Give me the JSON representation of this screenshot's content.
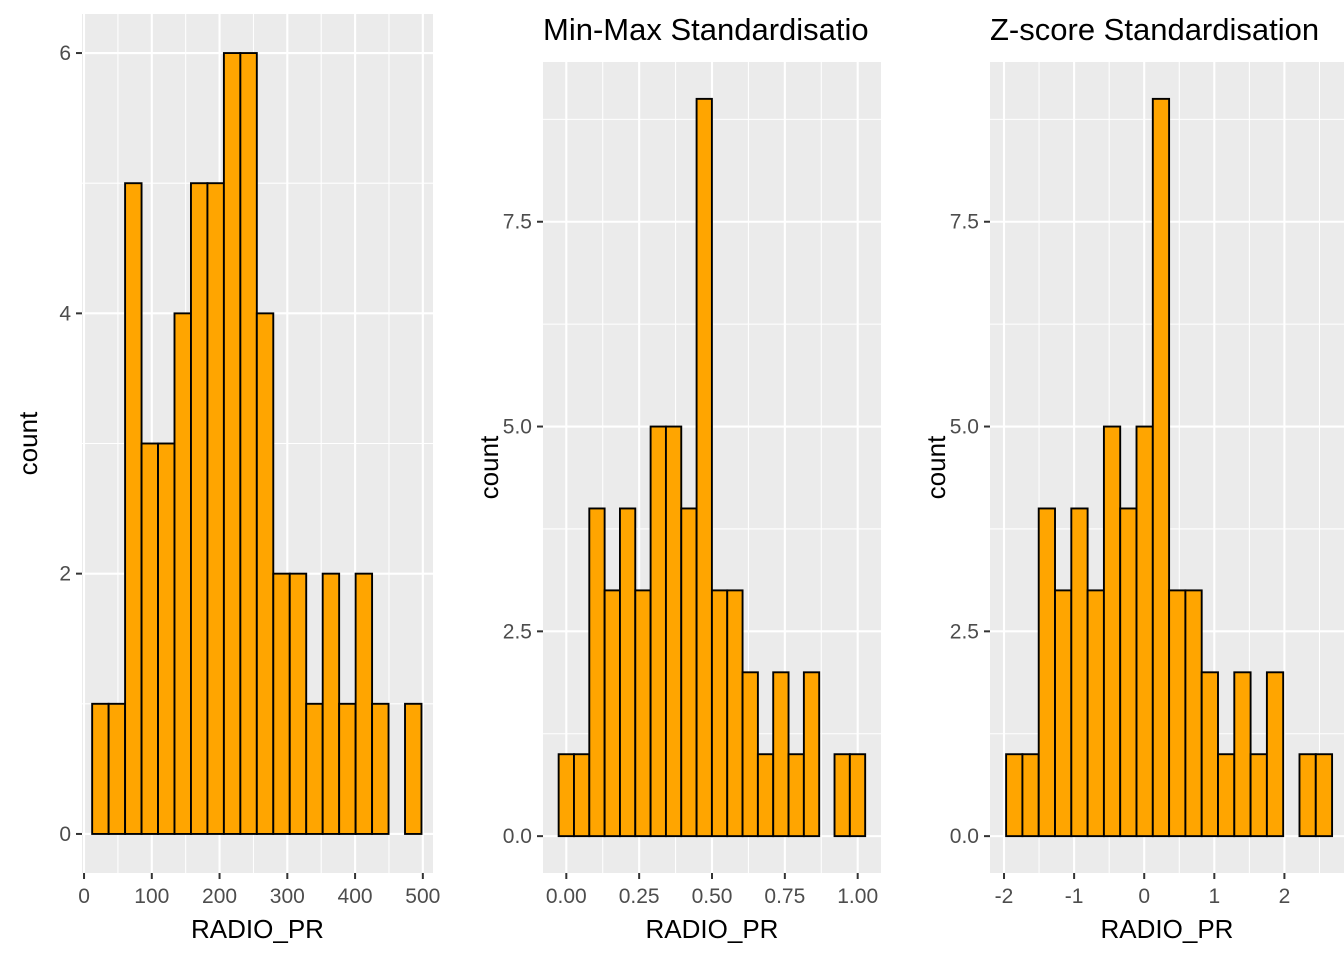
{
  "chart_data": [
    {
      "type": "bar",
      "title": "",
      "xlabel": "RADIO_PR",
      "ylabel": "count",
      "xlim": [
        -3,
        515
      ],
      "ylim": [
        -0.3,
        6.3
      ],
      "x_ticks": [
        0,
        100,
        200,
        300,
        400,
        500
      ],
      "x_tick_labels": [
        "0",
        "100",
        "200",
        "300",
        "400",
        "500"
      ],
      "y_ticks": [
        0,
        2,
        4,
        6
      ],
      "y_tick_labels": [
        "0",
        "2",
        "4",
        "6"
      ],
      "grid": true,
      "bin_start": 12,
      "bin_width": 24.3,
      "values": [
        1,
        1,
        5,
        3,
        3,
        4,
        5,
        5,
        6,
        6,
        4,
        2,
        2,
        1,
        2,
        1,
        2,
        1,
        0,
        1
      ]
    },
    {
      "type": "bar",
      "title": "Min-Max Standardisatio",
      "xlabel": "RADIO_PR",
      "ylabel": "count",
      "xlim": [
        -0.08,
        1.08
      ],
      "ylim": [
        -0.45,
        9.45
      ],
      "x_ticks": [
        0,
        0.25,
        0.5,
        0.75,
        1
      ],
      "x_tick_labels": [
        "0.00",
        "0.25",
        "0.50",
        "0.75",
        "1.00"
      ],
      "y_ticks": [
        0,
        2.5,
        5,
        7.5
      ],
      "y_tick_labels": [
        "0.0",
        "2.5",
        "5.0",
        "7.5"
      ],
      "grid": true,
      "bin_start": -0.0263,
      "bin_width": 0.0526,
      "values": [
        1,
        1,
        4,
        3,
        4,
        3,
        5,
        5,
        4,
        9,
        3,
        3,
        2,
        1,
        2,
        1,
        2,
        0,
        1,
        1
      ]
    },
    {
      "type": "bar",
      "title": "Z-score Standardisation",
      "xlabel": "RADIO_PR",
      "ylabel": "count",
      "xlim": [
        -2.2,
        2.85
      ],
      "ylim": [
        -0.45,
        9.45
      ],
      "x_ticks": [
        -2,
        -1,
        0,
        1,
        2
      ],
      "x_tick_labels": [
        "-2",
        "-1",
        "0",
        "1",
        "2"
      ],
      "y_ticks": [
        0,
        2.5,
        5,
        7.5
      ],
      "y_tick_labels": [
        "0.0",
        "2.5",
        "5.0",
        "7.5"
      ],
      "grid": true,
      "bin_start": -1.97,
      "bin_width": 0.2325,
      "values": [
        1,
        1,
        4,
        3,
        4,
        3,
        5,
        4,
        5,
        9,
        3,
        3,
        2,
        1,
        2,
        1,
        2,
        0,
        1,
        1
      ]
    }
  ]
}
